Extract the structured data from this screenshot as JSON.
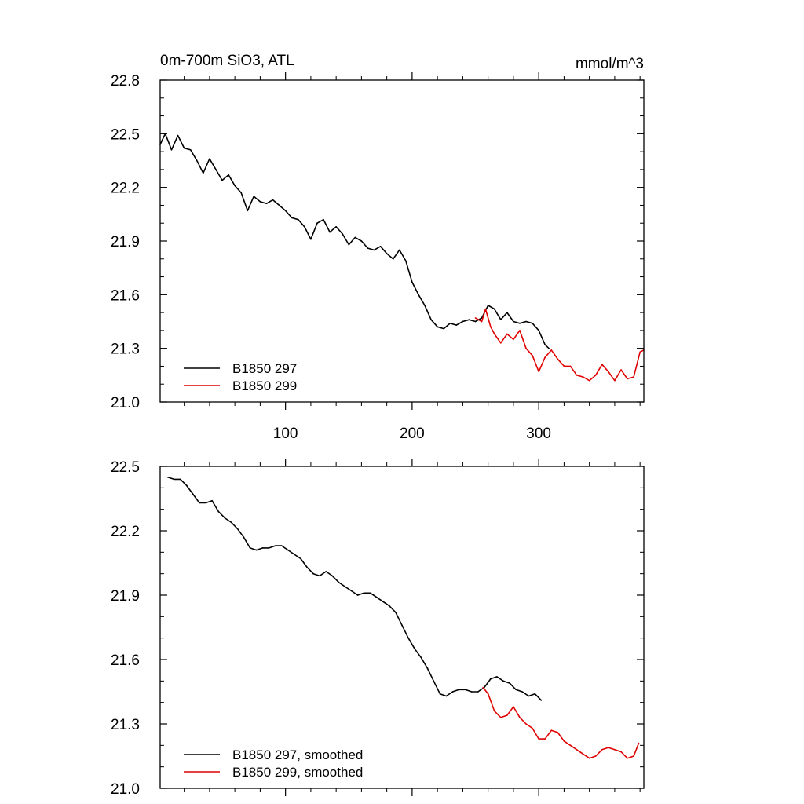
{
  "chart_data": [
    {
      "type": "line",
      "title": "0m-700m SiO3, ATL",
      "units": "mmol/m^3",
      "xlabel": "",
      "ylabel": "",
      "xlim": [
        1,
        383
      ],
      "ylim": [
        21.0,
        22.8
      ],
      "x_ticks": [
        100,
        200,
        300
      ],
      "y_ticks": [
        "21.0",
        "21.3",
        "21.6",
        "21.9",
        "22.2",
        "22.5",
        "22.8"
      ],
      "legend_position": "bottom-left",
      "series": [
        {
          "name": "B1850 297",
          "color": "#000000",
          "x": [
            1,
            5,
            10,
            15,
            20,
            25,
            30,
            35,
            40,
            45,
            50,
            55,
            60,
            65,
            70,
            75,
            80,
            85,
            90,
            95,
            100,
            105,
            110,
            115,
            120,
            125,
            130,
            135,
            140,
            145,
            150,
            155,
            160,
            165,
            170,
            175,
            180,
            185,
            190,
            195,
            200,
            205,
            210,
            215,
            220,
            225,
            230,
            235,
            240,
            245,
            250,
            255,
            260,
            265,
            270,
            275,
            280,
            285,
            290,
            295,
            300,
            305,
            308
          ],
          "values": [
            22.44,
            22.5,
            22.41,
            22.49,
            22.42,
            22.41,
            22.35,
            22.28,
            22.36,
            22.3,
            22.24,
            22.27,
            22.21,
            22.17,
            22.07,
            22.15,
            22.12,
            22.11,
            22.13,
            22.1,
            22.07,
            22.03,
            22.02,
            21.98,
            21.91,
            22.0,
            22.02,
            21.95,
            21.98,
            21.94,
            21.88,
            21.92,
            21.9,
            21.86,
            21.85,
            21.87,
            21.83,
            21.8,
            21.85,
            21.79,
            21.67,
            21.6,
            21.54,
            21.46,
            21.42,
            21.41,
            21.44,
            21.43,
            21.45,
            21.46,
            21.45,
            21.47,
            21.54,
            21.52,
            21.46,
            21.5,
            21.45,
            21.44,
            21.45,
            21.44,
            21.4,
            21.32,
            21.3
          ]
        },
        {
          "name": "B1850 299",
          "color": "#e00000",
          "x": [
            250,
            255,
            258,
            262,
            265,
            270,
            275,
            280,
            285,
            290,
            295,
            300,
            305,
            310,
            315,
            320,
            325,
            330,
            335,
            340,
            345,
            350,
            355,
            360,
            365,
            370,
            375,
            380,
            383
          ],
          "values": [
            21.47,
            21.45,
            21.52,
            21.42,
            21.38,
            21.33,
            21.38,
            21.35,
            21.4,
            21.3,
            21.26,
            21.17,
            21.25,
            21.29,
            21.24,
            21.2,
            21.2,
            21.15,
            21.14,
            21.12,
            21.15,
            21.21,
            21.17,
            21.12,
            21.18,
            21.13,
            21.14,
            21.28,
            21.29
          ]
        }
      ]
    },
    {
      "type": "line",
      "title": "",
      "xlabel": "",
      "ylabel": "",
      "xlim": [
        1,
        383
      ],
      "ylim": [
        21.0,
        22.5
      ],
      "y_ticks": [
        "21.0",
        "21.3",
        "21.6",
        "21.9",
        "22.2",
        "22.5"
      ],
      "legend_position": "bottom-left",
      "series": [
        {
          "name": "B1850 297, smoothed",
          "color": "#000000",
          "x": [
            7,
            12,
            17,
            22,
            27,
            32,
            37,
            42,
            47,
            52,
            57,
            62,
            67,
            72,
            77,
            82,
            87,
            92,
            97,
            102,
            107,
            112,
            117,
            122,
            127,
            132,
            137,
            142,
            147,
            152,
            157,
            162,
            167,
            172,
            177,
            182,
            187,
            192,
            197,
            202,
            207,
            212,
            217,
            222,
            227,
            232,
            237,
            242,
            247,
            252,
            257,
            262,
            267,
            272,
            277,
            282,
            287,
            292,
            297,
            302
          ],
          "values": [
            22.45,
            22.44,
            22.44,
            22.41,
            22.37,
            22.33,
            22.33,
            22.34,
            22.29,
            22.26,
            22.24,
            22.21,
            22.17,
            22.12,
            22.11,
            22.12,
            22.12,
            22.13,
            22.13,
            22.11,
            22.09,
            22.07,
            22.03,
            22.0,
            21.99,
            22.01,
            21.99,
            21.96,
            21.94,
            21.92,
            21.9,
            21.91,
            21.91,
            21.89,
            21.87,
            21.85,
            21.82,
            21.76,
            21.7,
            21.65,
            21.61,
            21.56,
            21.5,
            21.44,
            21.43,
            21.45,
            21.46,
            21.46,
            21.45,
            21.45,
            21.47,
            21.51,
            21.52,
            21.5,
            21.49,
            21.46,
            21.45,
            21.43,
            21.44,
            21.41
          ]
        },
        {
          "name": "B1850 299, smoothed",
          "color": "#e00000",
          "x": [
            256,
            260,
            265,
            270,
            275,
            280,
            285,
            290,
            295,
            300,
            305,
            310,
            315,
            320,
            325,
            330,
            335,
            340,
            345,
            350,
            355,
            360,
            365,
            370,
            375,
            379
          ],
          "values": [
            21.47,
            21.44,
            21.36,
            21.33,
            21.34,
            21.38,
            21.33,
            21.3,
            21.28,
            21.23,
            21.23,
            21.27,
            21.26,
            21.22,
            21.2,
            21.18,
            21.16,
            21.14,
            21.15,
            21.18,
            21.19,
            21.18,
            21.17,
            21.14,
            21.15,
            21.21
          ]
        }
      ]
    }
  ]
}
